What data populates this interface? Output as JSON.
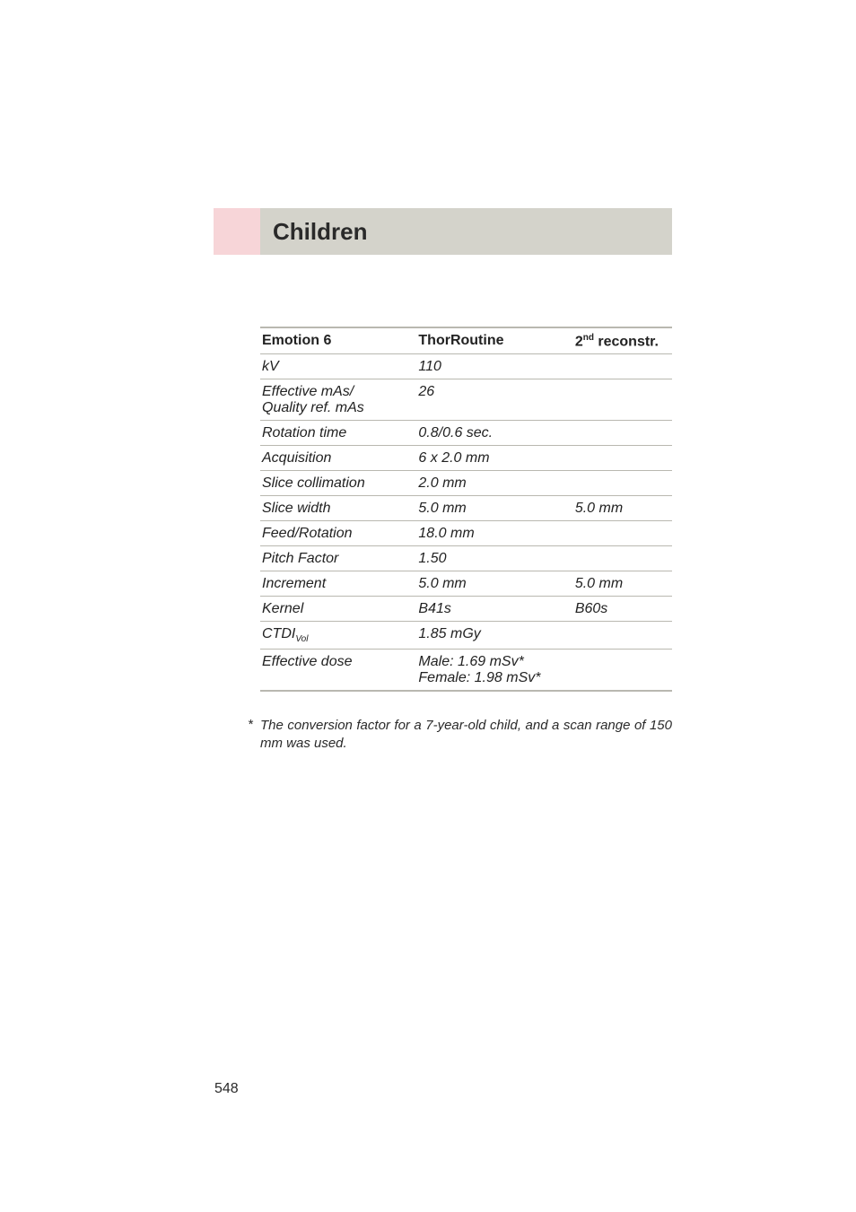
{
  "colors": {
    "title_accent_bg": "#f7d5d8",
    "title_main_bg": "#d4d3cb",
    "rule": "#b9b8b0",
    "text": "#2a2a2a",
    "page_bg": "#ffffff"
  },
  "title": "Children",
  "table": {
    "header": {
      "col1": "Emotion 6",
      "col2": "ThorRoutine",
      "col3_pre": "2",
      "col3_sup": "nd",
      "col3_post": " reconstr."
    },
    "rows": [
      {
        "name_html": "kV",
        "v1": "110",
        "v2": ""
      },
      {
        "name_html": "Effective mAs/\nQuality ref. mAs",
        "v1": "26",
        "v2": ""
      },
      {
        "name_html": "Rotation time",
        "v1": "0.8/0.6 sec.",
        "v2": ""
      },
      {
        "name_html": "Acquisition",
        "v1": "6 x 2.0 mm",
        "v2": ""
      },
      {
        "name_html": "Slice collimation",
        "v1": "2.0 mm",
        "v2": ""
      },
      {
        "name_html": "Slice width",
        "v1": "5.0 mm",
        "v2": "5.0 mm"
      },
      {
        "name_html": "Feed/Rotation",
        "v1": "18.0 mm",
        "v2": ""
      },
      {
        "name_html": "Pitch Factor",
        "v1": "1.50",
        "v2": ""
      },
      {
        "name_html": "Increment",
        "v1": "5.0 mm",
        "v2": "5.0 mm"
      },
      {
        "name_html": "Kernel",
        "v1": "B41s",
        "v2": "B60s"
      },
      {
        "name_html": "CTDI<sub>Vol</sub>",
        "v1": "1.85 mGy",
        "v2": ""
      },
      {
        "name_html": "Effective dose",
        "v1": "Male: 1.69 mSv*\nFemale: 1.98 mSv*",
        "v2": "",
        "v1_colspan": 2
      }
    ]
  },
  "footnote": {
    "marker": "*",
    "text": "The conversion factor for a 7-year-old child, and a scan range of 150 mm was used."
  },
  "page_number": "548"
}
